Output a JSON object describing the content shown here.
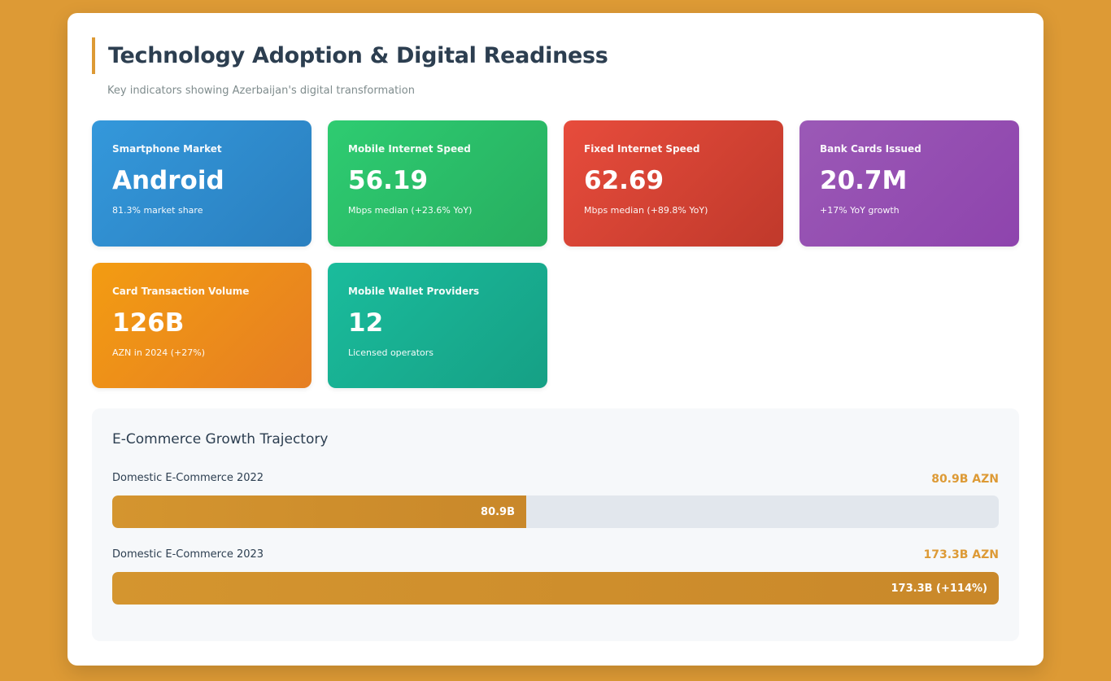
{
  "header": {
    "title": "Technology Adoption & Digital Readiness",
    "subtitle": "Key indicators showing Azerbaijan's digital transformation"
  },
  "stats": [
    {
      "label": "Smartphone Market",
      "value": "Android",
      "note": "81.3% market share",
      "color": "#3498db"
    },
    {
      "label": "Mobile Internet Speed",
      "value": "56.19",
      "note": "Mbps median (+23.6% YoY)",
      "color": "#2ecc71"
    },
    {
      "label": "Fixed Internet Speed",
      "value": "62.69",
      "note": "Mbps median (+89.8% YoY)",
      "color": "#e74c3c"
    },
    {
      "label": "Bank Cards Issued",
      "value": "20.7M",
      "note": "+17% YoY growth",
      "color": "#9b59b6"
    },
    {
      "label": "Card Transaction Volume",
      "value": "126B",
      "note": "AZN in 2024 (+27%)",
      "color": "#f39c12"
    },
    {
      "label": "Mobile Wallet Providers",
      "value": "12",
      "note": "Licensed operators",
      "color": "#1abc9c"
    }
  ],
  "ecommerce": {
    "title": "E-Commerce Growth Trajectory",
    "accent": "#dd9a35",
    "rows": [
      {
        "label": "Domestic E-Commerce 2022",
        "amount": "80.9B AZN",
        "bar_text": "80.9B",
        "fill_fraction": 0.467
      },
      {
        "label": "Domestic E-Commerce 2023",
        "amount": "173.3B AZN",
        "bar_text": "173.3B (+114%)",
        "fill_fraction": 1.0
      }
    ]
  }
}
